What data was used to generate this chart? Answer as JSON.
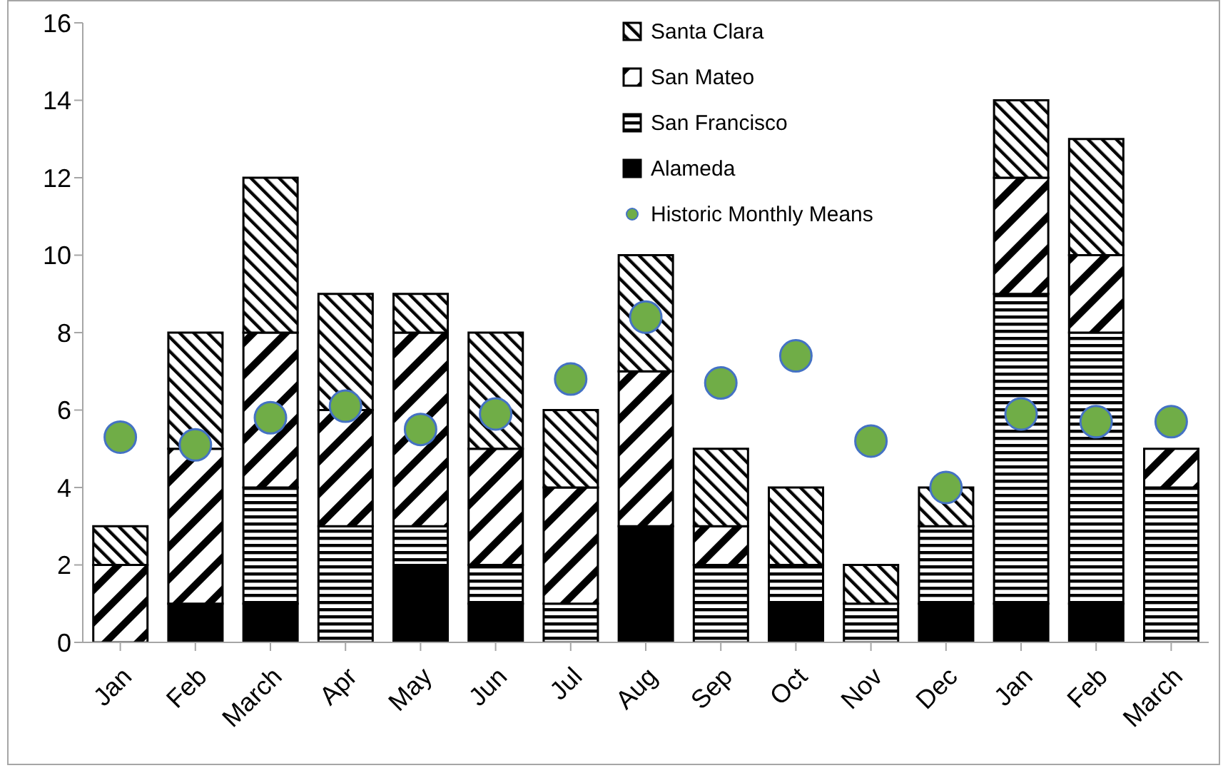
{
  "chart_data": {
    "type": "bar",
    "stacked": true,
    "categories": [
      "Jan",
      "Feb",
      "March",
      "Apr",
      "May",
      "Jun",
      "Jul",
      "Aug",
      "Sep",
      "Oct",
      "Nov",
      "Dec",
      "Jan",
      "Feb",
      "March"
    ],
    "series": [
      {
        "name": "Alameda",
        "color": "#000000",
        "values": [
          0,
          1,
          1,
          0,
          2,
          1,
          0,
          3,
          0,
          1,
          0,
          1,
          1,
          1,
          0
        ]
      },
      {
        "name": "San Francisco",
        "color": "#000000",
        "values": [
          0,
          0,
          3,
          3,
          1,
          1,
          1,
          0,
          2,
          1,
          1,
          2,
          8,
          7,
          4
        ]
      },
      {
        "name": "San Mateo",
        "color": "#000000",
        "values": [
          2,
          4,
          4,
          3,
          5,
          3,
          3,
          4,
          1,
          0,
          0,
          0,
          3,
          2,
          1
        ]
      },
      {
        "name": "Santa Clara",
        "color": "#000000",
        "values": [
          1,
          3,
          4,
          3,
          1,
          3,
          2,
          3,
          2,
          2,
          1,
          1,
          2,
          3,
          0
        ]
      },
      {
        "name": "Historic Monthly Means",
        "type": "scatter",
        "color": "#70ad47",
        "marker": "circle",
        "values": [
          5.3,
          5.1,
          5.8,
          6.1,
          5.5,
          5.9,
          6.8,
          8.4,
          6.7,
          7.4,
          5.2,
          4.0,
          5.9,
          5.7,
          5.7
        ]
      }
    ],
    "ylim": [
      0,
      16
    ],
    "yticks": [
      0,
      2,
      4,
      6,
      8,
      10,
      12,
      14,
      16
    ],
    "legend": "top"
  }
}
